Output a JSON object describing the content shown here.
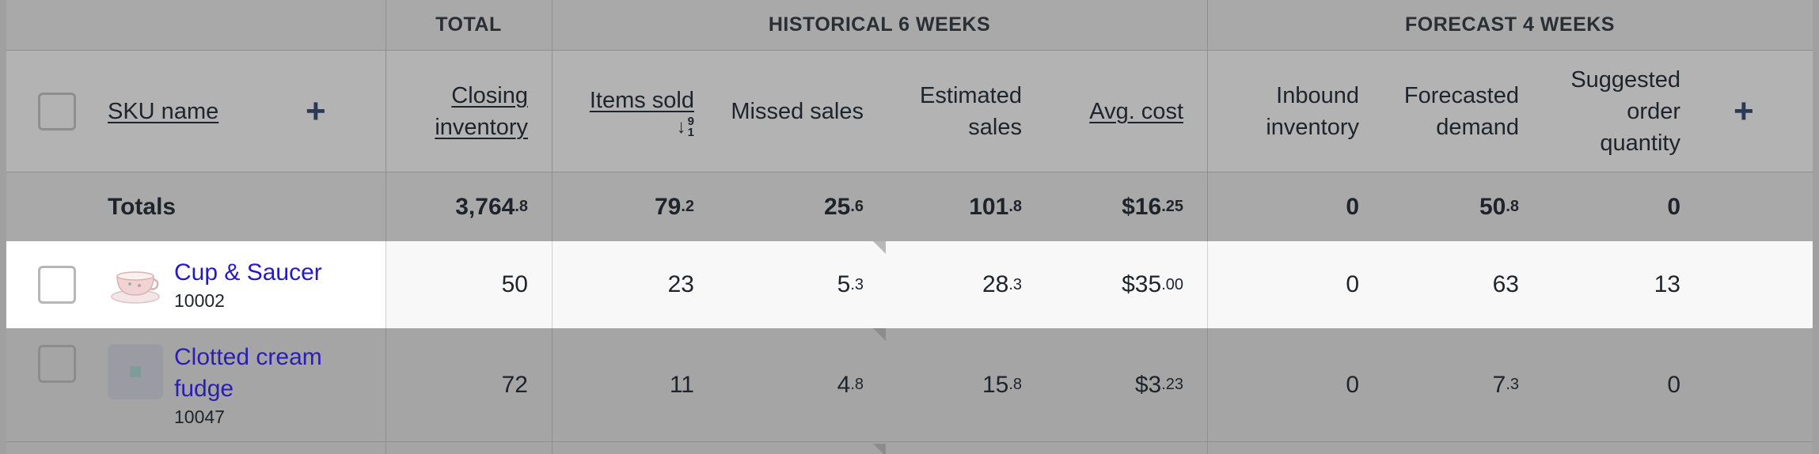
{
  "groups": {
    "total": "TOTAL",
    "historical": "HISTORICAL 6 WEEKS",
    "forecast": "FORECAST 4 WEEKS"
  },
  "headers": {
    "sku_name": "SKU name",
    "closing_line1": "Closing",
    "closing_line2": "inventory",
    "items_sold": "Items sold",
    "sort_icon": "arrow-down-9-1-icon",
    "sort_digit_top": "9",
    "sort_digit_bottom": "1",
    "missed_sales": "Missed sales",
    "estimated_line1": "Estimated",
    "estimated_line2": "sales",
    "avg_cost": "Avg. cost",
    "inbound_line1": "Inbound",
    "inbound_line2": "inventory",
    "forecasted_line1": "Forecasted",
    "forecasted_line2": "demand",
    "suggested_line1": "Suggested",
    "suggested_line2": "order",
    "suggested_line3": "quantity",
    "add_column": "+"
  },
  "totals": {
    "label": "Totals",
    "closing_int": "3,764",
    "closing_dec": ".8",
    "items_int": "79",
    "items_dec": ".2",
    "missed_int": "25",
    "missed_dec": ".6",
    "estimated_int": "101",
    "estimated_dec": ".8",
    "avg_int": "$16",
    "avg_dec": ".25",
    "inbound": "0",
    "forecast_int": "50",
    "forecast_dec": ".8",
    "suggested": "0"
  },
  "rows": [
    {
      "name": "Cup & Saucer",
      "sku": "10002",
      "thumb_icon": "teacup-image",
      "closing": "50",
      "items": "23",
      "missed_int": "5",
      "missed_dec": ".3",
      "estimated_int": "28",
      "estimated_dec": ".3",
      "avg_int": "$35",
      "avg_dec": ".00",
      "inbound": "0",
      "forecast": "63",
      "suggested": "13"
    },
    {
      "name_line1": "Clotted cream",
      "name_line2": "fudge",
      "sku": "10047",
      "thumb_icon": "image-placeholder-icon",
      "closing": "72",
      "items": "11",
      "missed_int": "4",
      "missed_dec": ".8",
      "estimated_int": "15",
      "estimated_dec": ".8",
      "avg_int": "$3",
      "avg_dec": ".23",
      "inbound": "0",
      "forecast_int": "7",
      "forecast_dec": ".3",
      "suggested": "0"
    }
  ],
  "colors": {
    "link": "#2418c9",
    "highlight_row": "#f8f8f8",
    "header_bg": "#b3b3b3",
    "accent_plus": "#2a3a55"
  }
}
